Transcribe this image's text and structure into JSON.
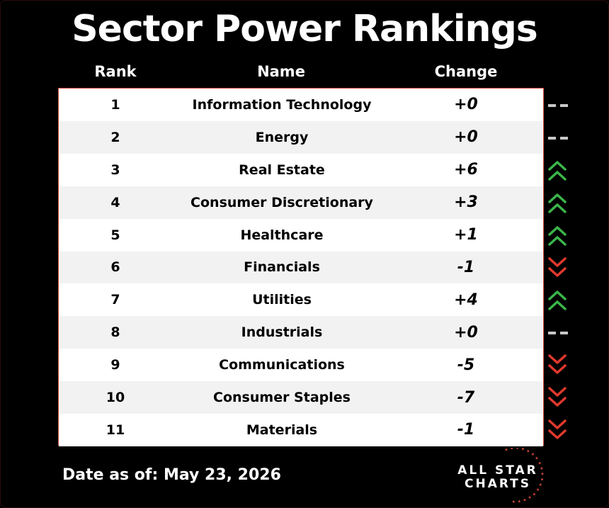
{
  "title": "Sector Power Rankings",
  "columns": {
    "rank": "Rank",
    "name": "Name",
    "change": "Change"
  },
  "colors": {
    "up": "#3bb54a",
    "down": "#e0392d",
    "flat": "#c8c8c8",
    "border": "#d94a3d"
  },
  "chart_data": {
    "type": "table",
    "title": "Sector Power Rankings",
    "columns": [
      "Rank",
      "Name",
      "Change"
    ],
    "rows": [
      {
        "rank": "1",
        "name": "Information Technology",
        "change": "+0",
        "direction": "flat"
      },
      {
        "rank": "2",
        "name": "Energy",
        "change": "+0",
        "direction": "flat"
      },
      {
        "rank": "3",
        "name": "Real Estate",
        "change": "+6",
        "direction": "up"
      },
      {
        "rank": "4",
        "name": "Consumer Discretionary",
        "change": "+3",
        "direction": "up"
      },
      {
        "rank": "5",
        "name": "Healthcare",
        "change": "+1",
        "direction": "up"
      },
      {
        "rank": "6",
        "name": "Financials",
        "change": "-1",
        "direction": "down"
      },
      {
        "rank": "7",
        "name": "Utilities",
        "change": "+4",
        "direction": "up"
      },
      {
        "rank": "8",
        "name": "Industrials",
        "change": "+0",
        "direction": "flat"
      },
      {
        "rank": "9",
        "name": "Communications",
        "change": "-5",
        "direction": "down"
      },
      {
        "rank": "10",
        "name": "Consumer Staples",
        "change": "-7",
        "direction": "down"
      },
      {
        "rank": "11",
        "name": "Materials",
        "change": "-1",
        "direction": "down"
      }
    ]
  },
  "footer": {
    "date_text": "Date as of: May 23, 2026"
  },
  "logo": {
    "line1": "ALL STAR",
    "line2": "CHARTS"
  }
}
